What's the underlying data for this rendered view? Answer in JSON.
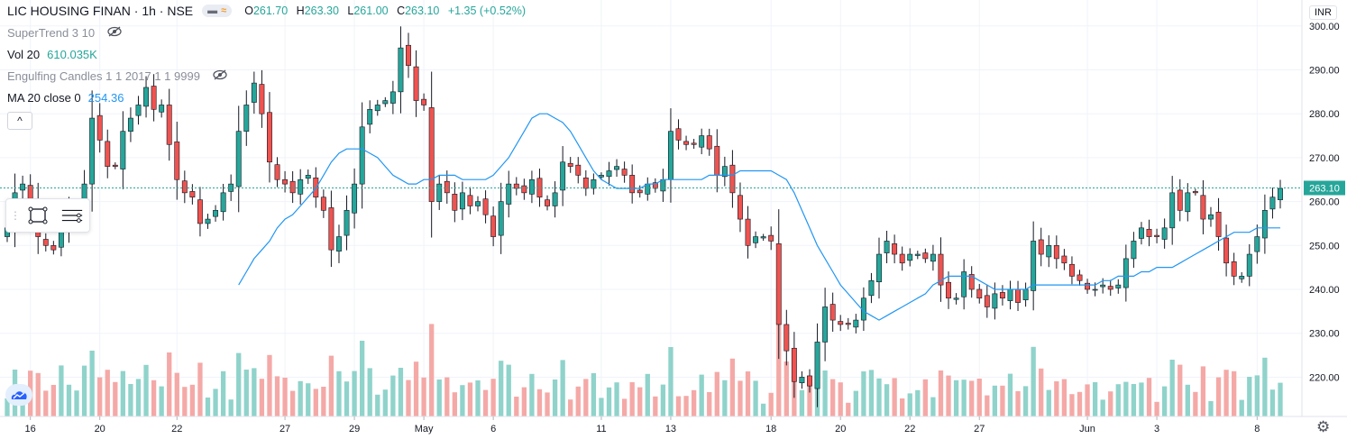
{
  "header": {
    "title": "LIC HOUSING FINAN · 1h · NSE",
    "ohlc": {
      "o_label": "O",
      "o": "261.70",
      "h_label": "H",
      "h": "263.30",
      "l_label": "L",
      "l": "261.00",
      "c_label": "C",
      "c": "263.10",
      "change": "+1.35 (+0.52%)"
    },
    "chip_left": "▬",
    "chip_right": "≈"
  },
  "indicators": {
    "supertrend": {
      "label": "SuperTrend 3 10",
      "icon": "eye-off-icon"
    },
    "volume": {
      "label": "Vol 20",
      "value": "610.035K"
    },
    "engulfing": {
      "label": "Engulfing Candles 1 1 2017 1 1 9999",
      "icon": "eye-off-icon"
    },
    "ma": {
      "label": "MA 20 close 0",
      "value": "254.36"
    },
    "collapse_glyph": "^"
  },
  "price_axis": {
    "currency": "INR",
    "last_price": "263.10"
  },
  "colors": {
    "up": "#26a69a",
    "down": "#ef5350",
    "up_vol": "#8fd3cb",
    "down_vol": "#f4a9a7",
    "ma": "#2196f3",
    "grid": "#f0f3fa",
    "last": "#26a69a"
  },
  "chart_data": {
    "type": "candlestick",
    "symbol": "LIC HOUSING FINAN",
    "interval": "1h",
    "exchange": "NSE",
    "y_ticks": [
      220,
      230,
      240,
      250,
      260,
      270,
      280,
      290,
      300
    ],
    "ylim": [
      214,
      304
    ],
    "x_ticks": [
      {
        "label": "16",
        "index": 3
      },
      {
        "label": "20",
        "index": 12
      },
      {
        "label": "22",
        "index": 22
      },
      {
        "label": "27",
        "index": 36
      },
      {
        "label": "29",
        "index": 45
      },
      {
        "label": "May",
        "index": 54
      },
      {
        "label": "6",
        "index": 63
      },
      {
        "label": "11",
        "index": 77
      },
      {
        "label": "13",
        "index": 86
      },
      {
        "label": "18",
        "index": 99
      },
      {
        "label": "20",
        "index": 108
      },
      {
        "label": "22",
        "index": 117
      },
      {
        "label": "27",
        "index": 126
      },
      {
        "label": "Jun",
        "index": 140
      },
      {
        "label": "3",
        "index": 149
      },
      {
        "label": "8",
        "index": 162
      }
    ],
    "close": [
      254,
      262,
      264,
      260,
      252,
      250,
      249,
      254,
      258,
      259,
      264,
      279,
      274,
      268,
      268,
      276,
      279,
      282,
      286,
      281,
      282,
      273,
      265,
      262,
      261,
      255,
      256,
      258,
      262,
      264,
      276,
      282,
      287,
      280,
      269,
      265,
      264,
      262,
      265,
      266,
      261,
      258,
      249,
      252,
      258,
      264,
      277,
      281,
      282,
      283,
      285,
      295,
      291,
      283,
      282,
      260,
      264,
      262,
      258,
      262,
      259,
      260,
      257,
      252,
      260,
      264,
      263,
      262,
      265,
      261,
      259,
      262,
      269,
      268,
      266,
      263,
      265,
      266,
      267,
      268,
      266,
      262,
      262,
      264,
      263,
      265,
      276,
      274,
      273,
      273,
      275,
      272,
      266,
      268,
      262,
      256,
      250,
      252,
      252,
      251,
      232,
      226,
      219,
      220,
      218,
      228,
      236,
      233,
      232,
      232,
      233,
      238,
      242,
      248,
      251,
      248,
      246,
      248,
      248,
      247,
      248,
      241,
      238,
      238,
      244,
      240,
      238,
      236,
      239,
      238,
      240,
      237,
      240,
      251,
      248,
      250,
      247,
      246,
      243,
      242,
      240,
      240,
      241,
      240,
      241,
      247,
      251,
      254,
      252,
      252,
      254,
      262,
      258,
      262,
      262,
      256,
      257,
      252,
      246,
      243,
      243,
      248,
      252,
      258,
      261,
      263
    ],
    "ma20": [
      241,
      244,
      247,
      249,
      251,
      254,
      256,
      257,
      259,
      261,
      263,
      266,
      269,
      271,
      272,
      272,
      272,
      271,
      270,
      268,
      266,
      265,
      264,
      264,
      265,
      265,
      266,
      266,
      266,
      265,
      265,
      265,
      265,
      266,
      268,
      270,
      273,
      276,
      279,
      280,
      280,
      279,
      278,
      276,
      273,
      270,
      267,
      265,
      264,
      263,
      263,
      263,
      263,
      264,
      264,
      265,
      265,
      265,
      265,
      265,
      265,
      266,
      266,
      266,
      266,
      267,
      267,
      267,
      267,
      267,
      266,
      265,
      262,
      258,
      254,
      250,
      247,
      244,
      241,
      239,
      237,
      235,
      234,
      233,
      234,
      235,
      236,
      237,
      238,
      239,
      241,
      242,
      243,
      243,
      243,
      243,
      242,
      241,
      240,
      240,
      240,
      240,
      240,
      241,
      241,
      241,
      241,
      241,
      241,
      241,
      241,
      241,
      242,
      242,
      243,
      243,
      243,
      244,
      244,
      245,
      245,
      245,
      246,
      247,
      248,
      249,
      250,
      251,
      252,
      253,
      253,
      253,
      254,
      254,
      254,
      254
    ],
    "volume_level_relative": "shown as bars along the bottom, up bars teal, down bars red"
  }
}
